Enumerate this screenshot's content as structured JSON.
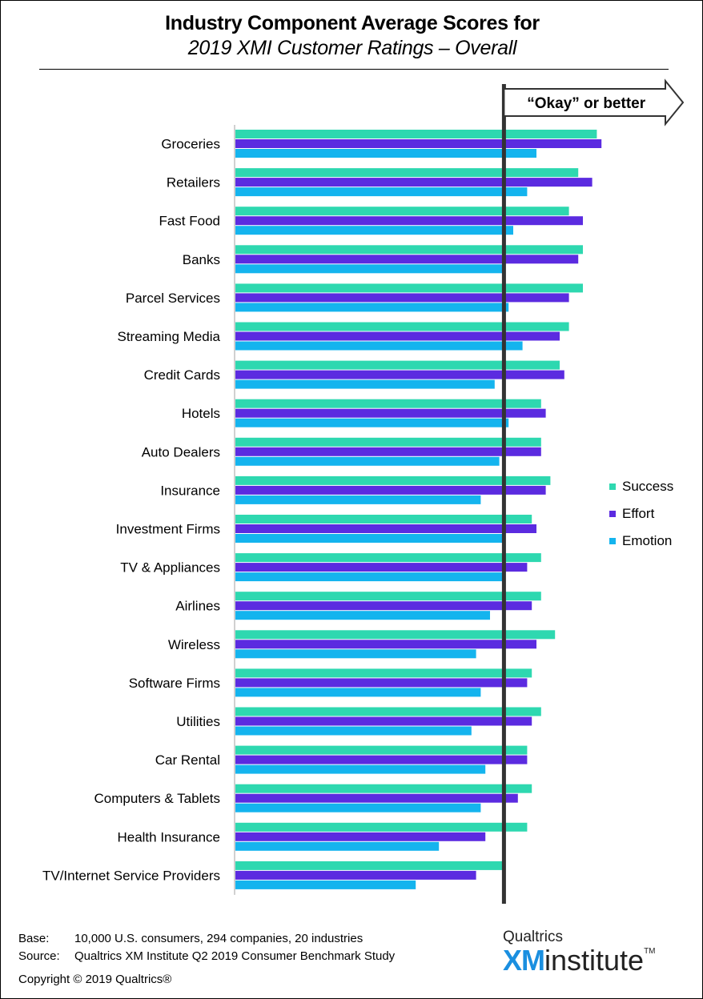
{
  "title": {
    "line1": "Industry Component Average Scores for",
    "line2": "2019 XMI Customer Ratings – Overall"
  },
  "threshold": {
    "label": "“Okay” or better",
    "value": 58
  },
  "colors": {
    "success": "#2ed8b0",
    "effort": "#5b2be0",
    "emotion": "#14b4ee",
    "threshold_line": "#333333"
  },
  "chart_data": {
    "type": "bar",
    "orientation": "horizontal",
    "categories": [
      "Groceries",
      "Retailers",
      "Fast Food",
      "Banks",
      "Parcel Services",
      "Streaming Media",
      "Credit Cards",
      "Hotels",
      "Auto Dealers",
      "Insurance",
      "Investment Firms",
      "TV & Appliances",
      "Airlines",
      "Wireless",
      "Software Firms",
      "Utilities",
      "Car Rental",
      "Computers & Tablets",
      "Health Insurance",
      "TV/Internet Service Providers"
    ],
    "series": [
      {
        "name": "Success",
        "values": [
          78,
          74,
          72,
          75,
          75,
          72,
          70,
          66,
          66,
          68,
          64,
          66,
          66,
          69,
          64,
          66,
          63,
          64,
          63,
          58
        ]
      },
      {
        "name": "Effort",
        "values": [
          79,
          77,
          75,
          74,
          72,
          70,
          71,
          67,
          66,
          67,
          65,
          63,
          64,
          65,
          63,
          64,
          63,
          61,
          54,
          52
        ]
      },
      {
        "name": "Emotion",
        "values": [
          65,
          63,
          60,
          58,
          59,
          62,
          56,
          59,
          57,
          53,
          58,
          58,
          55,
          52,
          53,
          51,
          54,
          53,
          44,
          39
        ]
      }
    ],
    "xlim": [
      0,
      100
    ],
    "legend": "right",
    "grid": false
  },
  "legend": {
    "items": [
      "Success",
      "Effort",
      "Emotion"
    ]
  },
  "footer": {
    "base_key": "Base:",
    "base_val": "10,000 U.S. consumers, 294 companies, 20 industries",
    "source_key": "Source:",
    "source_val": "Qualtrics XM Institute Q2 2019 Consumer Benchmark Study",
    "copyright": "Copyright © 2019 Qualtrics®"
  },
  "logo": {
    "top": "Qualtrics",
    "xm": "XM",
    "inst": "institute",
    "tm": "TM"
  }
}
